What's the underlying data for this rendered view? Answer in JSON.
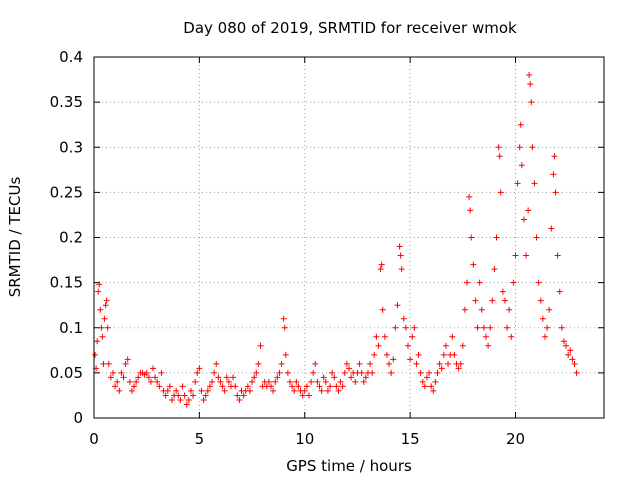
{
  "chart_data": {
    "type": "scatter",
    "title": "Day 080 of 2019, SRMTID for receiver wmok",
    "xlabel": "GPS time / hours",
    "ylabel": "SRMTID / TECUs",
    "xlim": [
      0,
      24.2
    ],
    "ylim": [
      0,
      0.4
    ],
    "xticks": [
      0,
      5,
      10,
      15,
      20
    ],
    "xtick_labels": [
      "0",
      "5",
      "10",
      "15",
      "20"
    ],
    "yticks": [
      0,
      0.05,
      0.1,
      0.15,
      0.2,
      0.25,
      0.3,
      0.35,
      0.4
    ],
    "ytick_labels": [
      "0",
      "0.05",
      "0.1",
      "0.15",
      "0.2",
      "0.25",
      "0.3",
      "0.35",
      "0.4"
    ],
    "grid": true,
    "marker": "+",
    "marker_color": "#ff0000",
    "series": [
      {
        "name": "SRMTID",
        "points": [
          [
            0.05,
            0.07
          ],
          [
            0.1,
            0.055
          ],
          [
            0.15,
            0.085
          ],
          [
            0.2,
            0.14
          ],
          [
            0.25,
            0.148
          ],
          [
            0.3,
            0.12
          ],
          [
            0.35,
            0.1
          ],
          [
            0.4,
            0.09
          ],
          [
            0.45,
            0.06
          ],
          [
            0.5,
            0.11
          ],
          [
            0.55,
            0.125
          ],
          [
            0.6,
            0.13
          ],
          [
            0.65,
            0.1
          ],
          [
            0.7,
            0.06
          ],
          [
            0.8,
            0.045
          ],
          [
            0.9,
            0.05
          ],
          [
            1.0,
            0.035
          ],
          [
            1.1,
            0.04
          ],
          [
            1.2,
            0.03
          ],
          [
            1.3,
            0.05
          ],
          [
            1.4,
            0.045
          ],
          [
            1.5,
            0.06
          ],
          [
            1.6,
            0.065
          ],
          [
            1.7,
            0.04
          ],
          [
            1.8,
            0.03
          ],
          [
            1.9,
            0.035
          ],
          [
            2.0,
            0.04
          ],
          [
            2.1,
            0.045
          ],
          [
            2.2,
            0.05
          ],
          [
            2.3,
            0.05
          ],
          [
            2.4,
            0.048
          ],
          [
            2.5,
            0.05
          ],
          [
            2.6,
            0.045
          ],
          [
            2.7,
            0.04
          ],
          [
            2.8,
            0.055
          ],
          [
            2.9,
            0.045
          ],
          [
            3.0,
            0.04
          ],
          [
            3.1,
            0.035
          ],
          [
            3.2,
            0.05
          ],
          [
            3.3,
            0.03
          ],
          [
            3.4,
            0.025
          ],
          [
            3.5,
            0.03
          ],
          [
            3.6,
            0.035
          ],
          [
            3.7,
            0.02
          ],
          [
            3.8,
            0.025
          ],
          [
            3.9,
            0.03
          ],
          [
            4.0,
            0.025
          ],
          [
            4.1,
            0.02
          ],
          [
            4.2,
            0.035
          ],
          [
            4.3,
            0.025
          ],
          [
            4.4,
            0.015
          ],
          [
            4.5,
            0.02
          ],
          [
            4.6,
            0.03
          ],
          [
            4.7,
            0.025
          ],
          [
            4.8,
            0.04
          ],
          [
            4.9,
            0.05
          ],
          [
            5.0,
            0.055
          ],
          [
            5.1,
            0.03
          ],
          [
            5.2,
            0.02
          ],
          [
            5.3,
            0.025
          ],
          [
            5.4,
            0.03
          ],
          [
            5.5,
            0.035
          ],
          [
            5.6,
            0.04
          ],
          [
            5.7,
            0.05
          ],
          [
            5.8,
            0.06
          ],
          [
            5.9,
            0.045
          ],
          [
            6.0,
            0.04
          ],
          [
            6.1,
            0.035
          ],
          [
            6.2,
            0.03
          ],
          [
            6.3,
            0.045
          ],
          [
            6.4,
            0.04
          ],
          [
            6.5,
            0.035
          ],
          [
            6.6,
            0.045
          ],
          [
            6.7,
            0.035
          ],
          [
            6.8,
            0.025
          ],
          [
            6.9,
            0.02
          ],
          [
            7.0,
            0.03
          ],
          [
            7.1,
            0.025
          ],
          [
            7.2,
            0.03
          ],
          [
            7.3,
            0.035
          ],
          [
            7.4,
            0.03
          ],
          [
            7.5,
            0.04
          ],
          [
            7.6,
            0.045
          ],
          [
            7.7,
            0.05
          ],
          [
            7.8,
            0.06
          ],
          [
            7.9,
            0.08
          ],
          [
            8.0,
            0.035
          ],
          [
            8.1,
            0.04
          ],
          [
            8.2,
            0.035
          ],
          [
            8.3,
            0.04
          ],
          [
            8.4,
            0.035
          ],
          [
            8.5,
            0.03
          ],
          [
            8.6,
            0.04
          ],
          [
            8.7,
            0.045
          ],
          [
            8.8,
            0.05
          ],
          [
            8.9,
            0.06
          ],
          [
            9.0,
            0.11
          ],
          [
            9.05,
            0.1
          ],
          [
            9.1,
            0.07
          ],
          [
            9.2,
            0.05
          ],
          [
            9.3,
            0.04
          ],
          [
            9.4,
            0.035
          ],
          [
            9.5,
            0.03
          ],
          [
            9.6,
            0.04
          ],
          [
            9.7,
            0.035
          ],
          [
            9.8,
            0.03
          ],
          [
            9.9,
            0.025
          ],
          [
            10.0,
            0.03
          ],
          [
            10.1,
            0.035
          ],
          [
            10.2,
            0.025
          ],
          [
            10.3,
            0.04
          ],
          [
            10.4,
            0.05
          ],
          [
            10.5,
            0.06
          ],
          [
            10.6,
            0.04
          ],
          [
            10.7,
            0.035
          ],
          [
            10.8,
            0.03
          ],
          [
            10.9,
            0.045
          ],
          [
            11.0,
            0.04
          ],
          [
            11.1,
            0.03
          ],
          [
            11.2,
            0.035
          ],
          [
            11.3,
            0.05
          ],
          [
            11.4,
            0.045
          ],
          [
            11.5,
            0.035
          ],
          [
            11.6,
            0.03
          ],
          [
            11.7,
            0.04
          ],
          [
            11.8,
            0.035
          ],
          [
            11.9,
            0.05
          ],
          [
            12.0,
            0.06
          ],
          [
            12.1,
            0.055
          ],
          [
            12.2,
            0.045
          ],
          [
            12.3,
            0.05
          ],
          [
            12.4,
            0.04
          ],
          [
            12.5,
            0.05
          ],
          [
            12.6,
            0.06
          ],
          [
            12.7,
            0.05
          ],
          [
            12.8,
            0.04
          ],
          [
            12.9,
            0.045
          ],
          [
            13.0,
            0.05
          ],
          [
            13.1,
            0.06
          ],
          [
            13.2,
            0.05
          ],
          [
            13.3,
            0.07
          ],
          [
            13.4,
            0.09
          ],
          [
            13.5,
            0.08
          ],
          [
            13.6,
            0.165
          ],
          [
            13.65,
            0.17
          ],
          [
            13.7,
            0.12
          ],
          [
            13.8,
            0.09
          ],
          [
            13.9,
            0.07
          ],
          [
            14.0,
            0.06
          ],
          [
            14.1,
            0.05
          ],
          [
            14.2,
            0.065
          ],
          [
            14.3,
            0.1
          ],
          [
            14.4,
            0.125
          ],
          [
            14.5,
            0.19
          ],
          [
            14.55,
            0.18
          ],
          [
            14.6,
            0.165
          ],
          [
            14.7,
            0.11
          ],
          [
            14.8,
            0.1
          ],
          [
            14.9,
            0.08
          ],
          [
            15.0,
            0.065
          ],
          [
            15.1,
            0.09
          ],
          [
            15.2,
            0.1
          ],
          [
            15.3,
            0.06
          ],
          [
            15.4,
            0.07
          ],
          [
            15.5,
            0.05
          ],
          [
            15.6,
            0.04
          ],
          [
            15.7,
            0.035
          ],
          [
            15.8,
            0.045
          ],
          [
            15.9,
            0.05
          ],
          [
            16.0,
            0.035
          ],
          [
            16.1,
            0.03
          ],
          [
            16.2,
            0.04
          ],
          [
            16.3,
            0.05
          ],
          [
            16.4,
            0.06
          ],
          [
            16.5,
            0.055
          ],
          [
            16.6,
            0.07
          ],
          [
            16.7,
            0.08
          ],
          [
            16.8,
            0.06
          ],
          [
            16.9,
            0.07
          ],
          [
            17.0,
            0.09
          ],
          [
            17.1,
            0.07
          ],
          [
            17.2,
            0.06
          ],
          [
            17.3,
            0.055
          ],
          [
            17.4,
            0.06
          ],
          [
            17.5,
            0.08
          ],
          [
            17.6,
            0.12
          ],
          [
            17.7,
            0.15
          ],
          [
            17.8,
            0.245
          ],
          [
            17.85,
            0.23
          ],
          [
            17.9,
            0.2
          ],
          [
            18.0,
            0.17
          ],
          [
            18.1,
            0.13
          ],
          [
            18.2,
            0.1
          ],
          [
            18.3,
            0.15
          ],
          [
            18.4,
            0.12
          ],
          [
            18.5,
            0.1
          ],
          [
            18.6,
            0.09
          ],
          [
            18.7,
            0.08
          ],
          [
            18.8,
            0.1
          ],
          [
            18.9,
            0.13
          ],
          [
            19.0,
            0.165
          ],
          [
            19.1,
            0.2
          ],
          [
            19.2,
            0.3
          ],
          [
            19.25,
            0.29
          ],
          [
            19.3,
            0.25
          ],
          [
            19.4,
            0.14
          ],
          [
            19.5,
            0.13
          ],
          [
            19.6,
            0.1
          ],
          [
            19.7,
            0.12
          ],
          [
            19.8,
            0.09
          ],
          [
            19.9,
            0.15
          ],
          [
            20.0,
            0.18
          ],
          [
            20.1,
            0.26
          ],
          [
            20.2,
            0.3
          ],
          [
            20.25,
            0.325
          ],
          [
            20.3,
            0.28
          ],
          [
            20.4,
            0.22
          ],
          [
            20.5,
            0.18
          ],
          [
            20.6,
            0.23
          ],
          [
            20.65,
            0.38
          ],
          [
            20.7,
            0.37
          ],
          [
            20.75,
            0.35
          ],
          [
            20.8,
            0.3
          ],
          [
            20.9,
            0.26
          ],
          [
            21.0,
            0.2
          ],
          [
            21.1,
            0.15
          ],
          [
            21.2,
            0.13
          ],
          [
            21.3,
            0.11
          ],
          [
            21.4,
            0.09
          ],
          [
            21.5,
            0.1
          ],
          [
            21.6,
            0.12
          ],
          [
            21.7,
            0.21
          ],
          [
            21.8,
            0.27
          ],
          [
            21.85,
            0.29
          ],
          [
            21.9,
            0.25
          ],
          [
            22.0,
            0.18
          ],
          [
            22.1,
            0.14
          ],
          [
            22.2,
            0.1
          ],
          [
            22.3,
            0.085
          ],
          [
            22.4,
            0.08
          ],
          [
            22.5,
            0.07
          ],
          [
            22.6,
            0.075
          ],
          [
            22.7,
            0.065
          ],
          [
            22.8,
            0.06
          ],
          [
            22.9,
            0.05
          ]
        ]
      }
    ]
  }
}
